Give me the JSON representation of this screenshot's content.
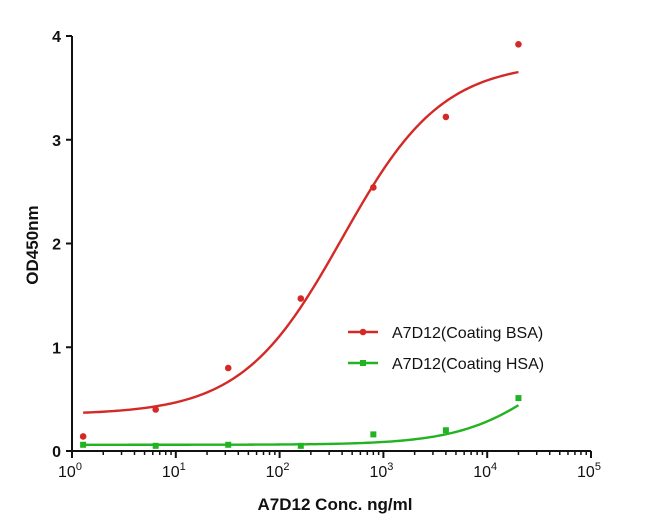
{
  "chart_data": {
    "type": "scatter",
    "title": "",
    "xlabel": "A7D12 Conc. ng/ml",
    "ylabel": "OD450nm",
    "xscale": "log",
    "xlim": [
      1,
      100000
    ],
    "ylim": [
      0,
      4
    ],
    "x_ticks": [
      {
        "value": 1,
        "base": "10",
        "exp": "0"
      },
      {
        "value": 10,
        "base": "10",
        "exp": "1"
      },
      {
        "value": 100,
        "base": "10",
        "exp": "2"
      },
      {
        "value": 1000,
        "base": "10",
        "exp": "3"
      },
      {
        "value": 10000,
        "base": "10",
        "exp": "4"
      },
      {
        "value": 100000,
        "base": "10",
        "exp": "5"
      }
    ],
    "y_ticks": [
      "0",
      "1",
      "2",
      "3",
      "4"
    ],
    "legend_position": "middle-right",
    "series": [
      {
        "name": "A7D12(Coating BSA)",
        "color": "#d42a27",
        "marker": "circle",
        "x": [
          1.28,
          6.4,
          32,
          160,
          800,
          4000,
          20000
        ],
        "y": [
          0.14,
          0.4,
          0.8,
          1.47,
          2.54,
          3.22,
          3.92
        ],
        "fit": {
          "bottom": 0.35,
          "top": 3.75,
          "ec50": 400,
          "hill": 0.9
        }
      },
      {
        "name": "A7D12(Coating HSA)",
        "color": "#21b321",
        "marker": "square",
        "x": [
          1.28,
          6.4,
          32,
          160,
          800,
          4000,
          20000
        ],
        "y": [
          0.06,
          0.05,
          0.06,
          0.05,
          0.16,
          0.2,
          0.51
        ],
        "fit": {
          "bottom": 0.06,
          "top": 1.3,
          "ec50": 45000,
          "hill": 1.0
        }
      }
    ]
  }
}
